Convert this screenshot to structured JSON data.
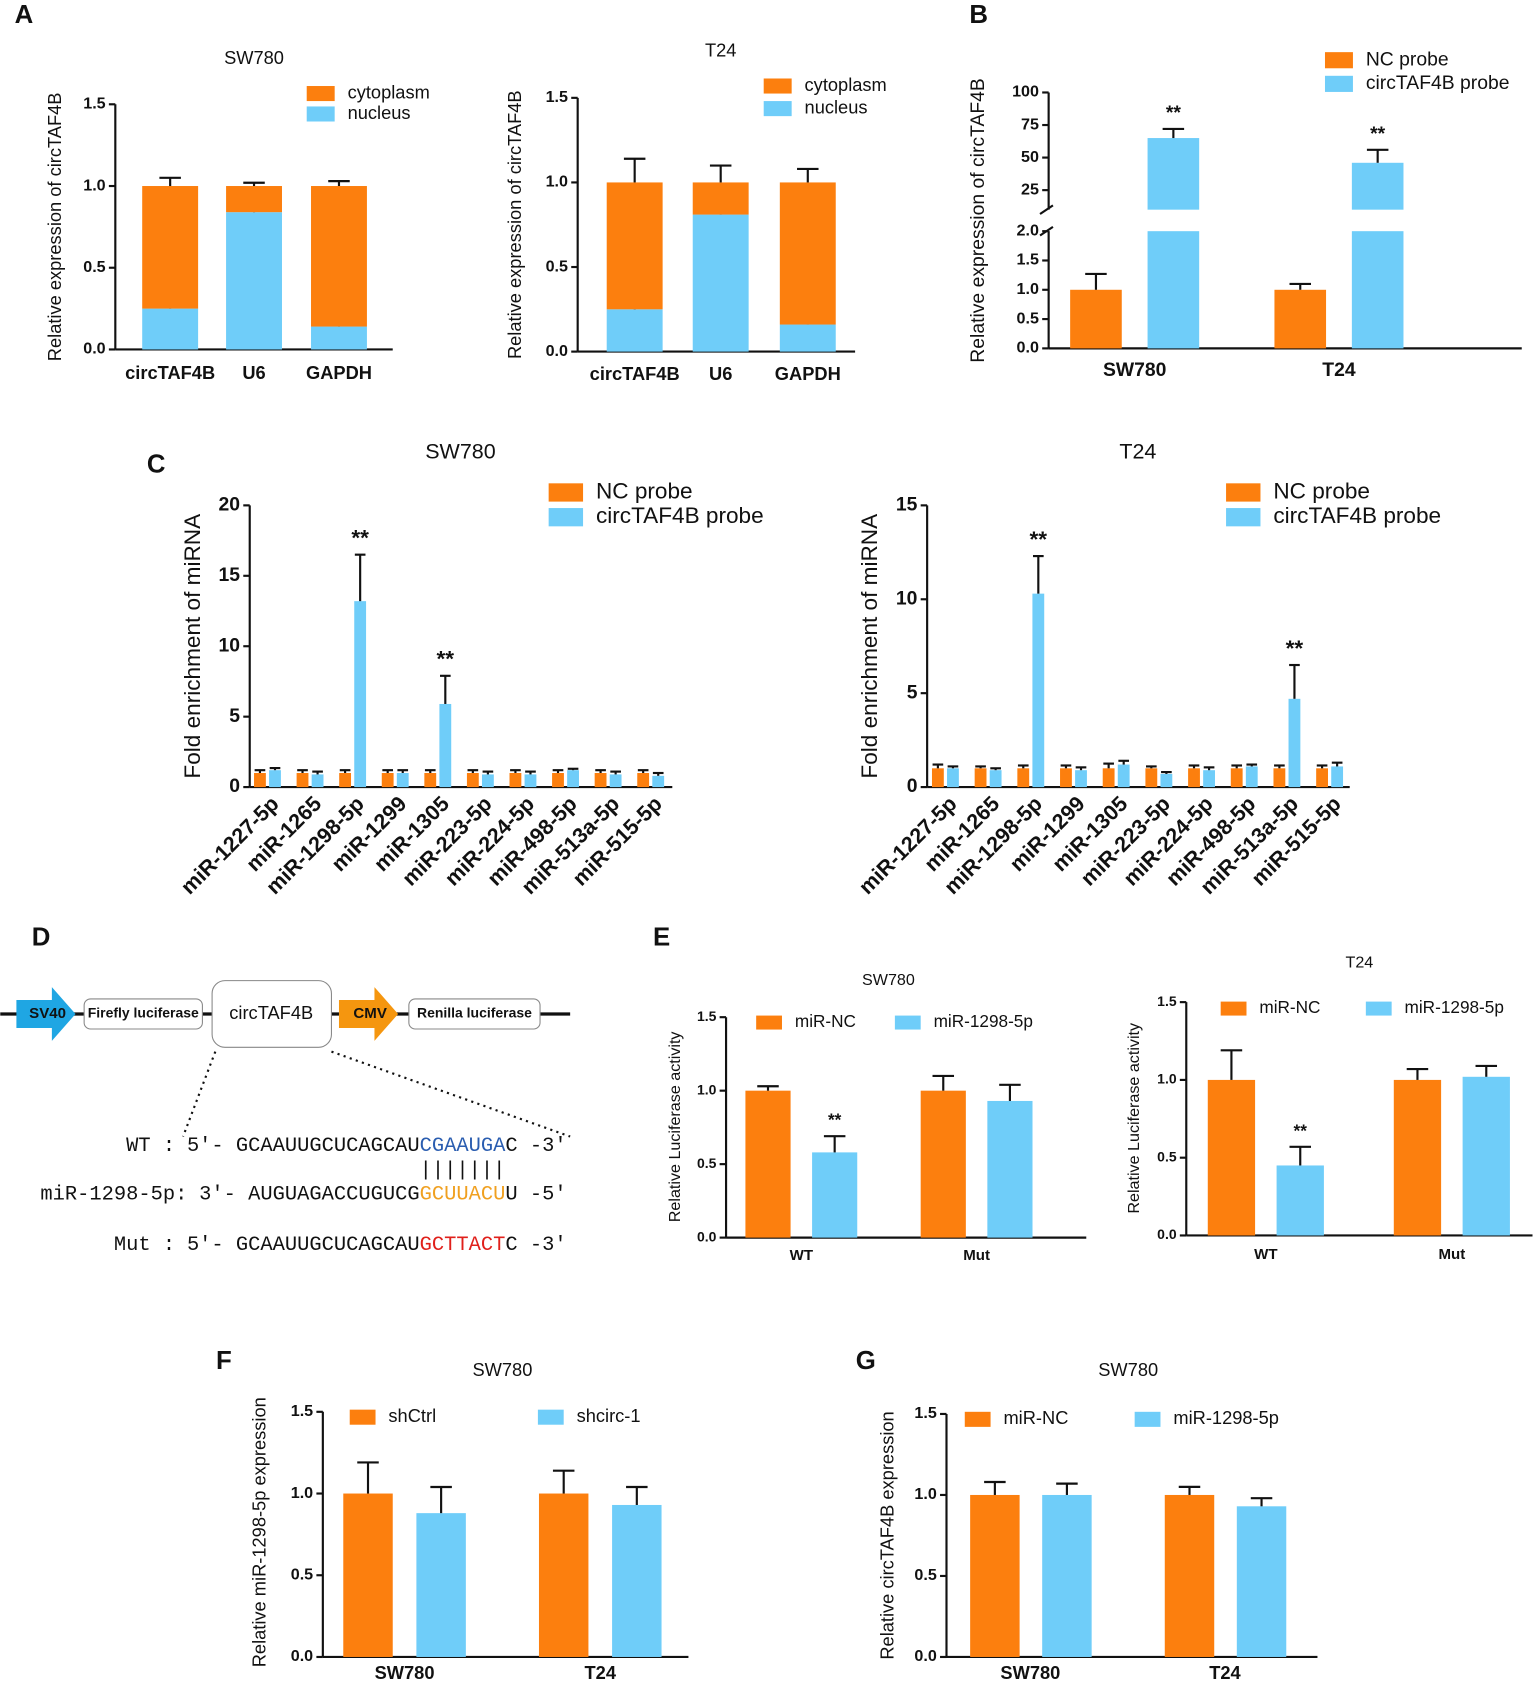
{
  "panel_labels": [
    "A",
    "B",
    "C",
    "D",
    "E",
    "F",
    "G"
  ],
  "chart_data": [
    {
      "type": "stacked_bar",
      "title": "SW780",
      "ylabel": "Relative expression of circTAF4B",
      "categories": [
        "circTAF4B",
        "U6",
        "GAPDH"
      ],
      "series": [
        {
          "name": "cytoplasm",
          "color": "#fc7f0e",
          "values": [
            0.75,
            0.16,
            0.86
          ],
          "errors": [
            0.05,
            0.02,
            0.03
          ]
        },
        {
          "name": "nucleus",
          "color": "#6fcdf9",
          "values": [
            0.25,
            0.84,
            0.14
          ],
          "errors": [
            0.05,
            0.02,
            0.03
          ]
        }
      ],
      "ylim": [
        0,
        1.5
      ],
      "yticks": [
        {
          "value": 0,
          "label": "0.0"
        },
        {
          "value": 0.5,
          "label": "0.5"
        },
        {
          "value": 1,
          "label": "1.0"
        },
        {
          "value": 1.5,
          "label": "1.5"
        }
      ]
    },
    {
      "type": "stacked_bar",
      "title": "T24",
      "ylabel": "Relative expression of circTAF4B",
      "categories": [
        "circTAF4B",
        "U6",
        "GAPDH"
      ],
      "series": [
        {
          "name": "cytoplasm",
          "color": "#fc7f0e",
          "values": [
            0.75,
            0.19,
            0.84
          ],
          "errors": [
            0.14,
            0.1,
            0.08
          ]
        },
        {
          "name": "nucleus",
          "color": "#6fcdf9",
          "values": [
            0.25,
            0.81,
            0.16
          ],
          "errors": [
            0.14,
            0.11,
            0.08
          ]
        }
      ],
      "ylim": [
        0,
        1.5
      ],
      "yticks": [
        {
          "value": 0,
          "label": "0.0"
        },
        {
          "value": 0.5,
          "label": "0.5"
        },
        {
          "value": 1,
          "label": "1.0"
        },
        {
          "value": 1.5,
          "label": "1.5"
        }
      ]
    },
    {
      "type": "bar",
      "ylabel": "Relative expression of circTAF4B",
      "categories": [
        "SW780",
        "T24"
      ],
      "series": [
        {
          "name": "NC probe",
          "color": "#fc7f0e",
          "values": [
            1.0,
            1.0
          ],
          "errors": [
            0.27,
            0.1
          ]
        },
        {
          "name": "circTAF4B probe",
          "color": "#6fcdf9",
          "values": [
            65,
            46
          ],
          "errors": [
            7,
            10
          ],
          "significance": [
            "**",
            "**"
          ]
        }
      ],
      "ylim": [
        0,
        100
      ],
      "ybreak": [
        2,
        10
      ],
      "yticks": [
        {
          "value": 0,
          "label": "0.0"
        },
        {
          "value": 0.5,
          "label": "0.5"
        },
        {
          "value": 1,
          "label": "1.0"
        },
        {
          "value": 1.5,
          "label": "1.5"
        },
        {
          "value": 2,
          "label": "2.0"
        },
        25,
        50,
        75,
        100
      ]
    },
    {
      "type": "bar",
      "title": "SW780",
      "ylabel": "Fold enrichment of miRNA",
      "categories": [
        "miR-1227-5p",
        "miR-1265",
        "miR-1298-5p",
        "miR-1299",
        "miR-1305",
        "miR-223-5p",
        "miR-224-5p",
        "miR-498-5p",
        "miR-513a-5p",
        "miR-515-5p"
      ],
      "series": [
        {
          "name": "NC probe",
          "color": "#fc7f0e",
          "values": [
            1.0,
            1.0,
            1.0,
            1.0,
            1.0,
            1.0,
            1.0,
            1.0,
            1.0,
            1.0
          ],
          "errors": [
            0.2,
            0.2,
            0.2,
            0.2,
            0.2,
            0.2,
            0.2,
            0.2,
            0.2,
            0.2
          ]
        },
        {
          "name": "circTAF4B probe",
          "color": "#6fcdf9",
          "values": [
            1.2,
            0.9,
            13.2,
            1.0,
            5.9,
            0.9,
            0.9,
            1.2,
            0.9,
            0.8
          ],
          "errors": [
            0.15,
            0.2,
            3.3,
            0.2,
            2.0,
            0.2,
            0.2,
            0.1,
            0.2,
            0.2
          ],
          "significance": [
            null,
            null,
            "**",
            null,
            "**",
            null,
            null,
            null,
            null,
            null
          ]
        }
      ],
      "ylim": [
        0,
        20
      ],
      "yticks": [
        0,
        5,
        10,
        15,
        20
      ]
    },
    {
      "type": "bar",
      "title": "T24",
      "ylabel": "Fold enrichment of miRNA",
      "categories": [
        "miR-1227-5p",
        "miR-1265",
        "miR-1298-5p",
        "miR-1299",
        "miR-1305",
        "miR-223-5p",
        "miR-224-5p",
        "miR-498-5p",
        "miR-513a-5p",
        "miR-515-5p"
      ],
      "series": [
        {
          "name": "NC probe",
          "color": "#fc7f0e",
          "values": [
            1.0,
            1.0,
            1.0,
            1.0,
            1.0,
            1.0,
            1.0,
            1.0,
            1.0,
            1.0
          ],
          "errors": [
            0.2,
            0.1,
            0.15,
            0.15,
            0.25,
            0.1,
            0.15,
            0.15,
            0.15,
            0.15
          ]
        },
        {
          "name": "circTAF4B probe",
          "color": "#6fcdf9",
          "values": [
            1.0,
            0.9,
            10.3,
            0.9,
            1.2,
            0.7,
            0.9,
            1.1,
            4.7,
            1.1
          ],
          "errors": [
            0.1,
            0.1,
            2.0,
            0.15,
            0.2,
            0.1,
            0.15,
            0.1,
            1.8,
            0.2
          ],
          "significance": [
            null,
            null,
            "**",
            null,
            null,
            null,
            null,
            null,
            "**",
            null
          ]
        }
      ],
      "ylim": [
        0,
        15
      ],
      "yticks": [
        0,
        5,
        10,
        15
      ]
    },
    {
      "type": "bar",
      "title": "SW780",
      "ylabel": "Relative Luciferase activity",
      "categories": [
        "WT",
        "Mut"
      ],
      "series": [
        {
          "name": "miR-NC",
          "color": "#fc7f0e",
          "values": [
            1.0,
            1.0
          ],
          "errors": [
            0.03,
            0.1
          ]
        },
        {
          "name": "miR-1298-5p",
          "color": "#6fcdf9",
          "values": [
            0.58,
            0.93
          ],
          "errors": [
            0.11,
            0.11
          ],
          "significance": [
            "**",
            null
          ]
        }
      ],
      "ylim": [
        0,
        1.5
      ],
      "yticks": [
        {
          "value": 0,
          "label": "0.0"
        },
        {
          "value": 0.5,
          "label": "0.5"
        },
        {
          "value": 1,
          "label": "1.0"
        },
        {
          "value": 1.5,
          "label": "1.5"
        }
      ]
    },
    {
      "type": "bar",
      "title": "T24",
      "ylabel": "Relative Luciferase activity",
      "categories": [
        "WT",
        "Mut"
      ],
      "series": [
        {
          "name": "miR-NC",
          "color": "#fc7f0e",
          "values": [
            1.0,
            1.0
          ],
          "errors": [
            0.19,
            0.07
          ]
        },
        {
          "name": "miR-1298-5p",
          "color": "#6fcdf9",
          "values": [
            0.45,
            1.02
          ],
          "errors": [
            0.12,
            0.07
          ],
          "significance": [
            "**",
            null
          ]
        }
      ],
      "ylim": [
        0,
        1.5
      ],
      "yticks": [
        {
          "value": 0,
          "label": "0.0"
        },
        {
          "value": 0.5,
          "label": "0.5"
        },
        {
          "value": 1,
          "label": "1.0"
        },
        {
          "value": 1.5,
          "label": "1.5"
        }
      ]
    },
    {
      "type": "bar",
      "title": "SW780",
      "ylabel": "Relative miR-1298-5p expression",
      "categories": [
        "SW780",
        "T24"
      ],
      "series": [
        {
          "name": "shCtrl",
          "color": "#fc7f0e",
          "values": [
            1.0,
            1.0
          ],
          "errors": [
            0.19,
            0.14
          ]
        },
        {
          "name": "shcirc-1",
          "color": "#6fcdf9",
          "values": [
            0.88,
            0.93
          ],
          "errors": [
            0.16,
            0.11
          ]
        }
      ],
      "ylim": [
        0,
        1.5
      ],
      "yticks": [
        {
          "value": 0,
          "label": "0.0"
        },
        {
          "value": 0.5,
          "label": "0.5"
        },
        {
          "value": 1,
          "label": "1.0"
        },
        {
          "value": 1.5,
          "label": "1.5"
        }
      ]
    },
    {
      "type": "bar",
      "title": "SW780",
      "ylabel": "Relative circTAF4B expression",
      "categories": [
        "SW780",
        "T24"
      ],
      "series": [
        {
          "name": "miR-NC",
          "color": "#fc7f0e",
          "values": [
            1.0,
            1.0
          ],
          "errors": [
            0.08,
            0.05
          ]
        },
        {
          "name": "miR-1298-5p",
          "color": "#6fcdf9",
          "values": [
            1.0,
            0.93
          ],
          "errors": [
            0.07,
            0.05
          ]
        }
      ],
      "ylim": [
        0,
        1.5
      ],
      "yticks": [
        {
          "value": 0,
          "label": "0.0"
        },
        {
          "value": 0.5,
          "label": "0.5"
        },
        {
          "value": 1,
          "label": "1.0"
        },
        {
          "value": 1.5,
          "label": "1.5"
        }
      ]
    }
  ],
  "diagram": {
    "elements": [
      "SV40",
      "Firefly luciferase",
      "circTAF4B",
      "CMV",
      "Renilla luciferase"
    ],
    "sequences": [
      {
        "label": "WT :",
        "prefix": "5'- GCAAUUGCUCAGCAU",
        "site": "CGAAUGA",
        "suffix": "C -3'"
      },
      {
        "label": "miR-1298-5p:",
        "prefix": "3'- AUGUAGACCUGUCG",
        "site": "GCUUACU",
        "suffix": "U -5'"
      },
      {
        "label": "Mut :",
        "prefix": "5'- GCAAUUGCUCAGCAU",
        "site": "GCTTACT",
        "suffix": "C -3'"
      }
    ],
    "pairing": "|||||||"
  }
}
